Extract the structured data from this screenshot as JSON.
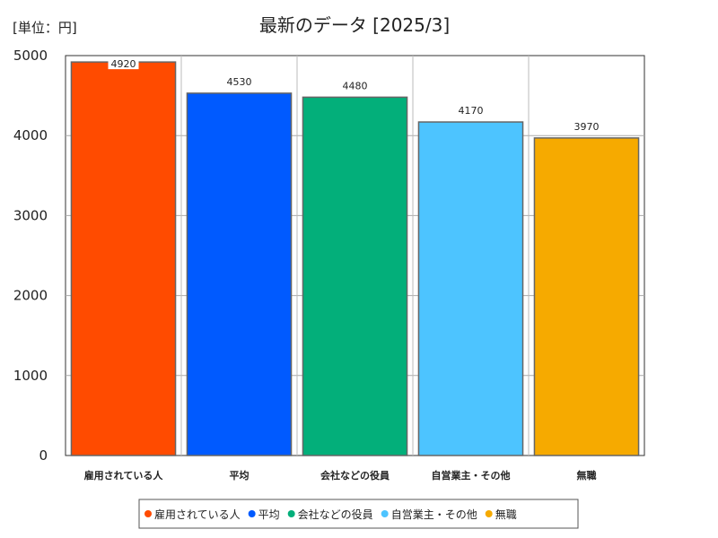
{
  "chart_data": {
    "type": "bar",
    "title": "最新のデータ [2025/3]",
    "unit_label": "[単位：円]",
    "categories": [
      "雇用されている人",
      "平均",
      "会社などの役員",
      "自営業主・その他",
      "無職"
    ],
    "values": [
      4920,
      4530,
      4480,
      4170,
      3970
    ],
    "data_labels": [
      "4920",
      "4530",
      "4480",
      "4170",
      "3970"
    ],
    "colors": [
      "#ff4b00",
      "#005aff",
      "#03af7a",
      "#4dc4ff",
      "#f6aa00"
    ],
    "ylim": [
      0,
      5000
    ],
    "yticks": [
      "0",
      "1000",
      "2000",
      "3000",
      "4000",
      "5000"
    ],
    "grid": true,
    "legend": {
      "position": "bottom",
      "entries": [
        "雇用されている人",
        "平均",
        "会社などの役員",
        "自営業主・その他",
        "無職"
      ]
    }
  }
}
